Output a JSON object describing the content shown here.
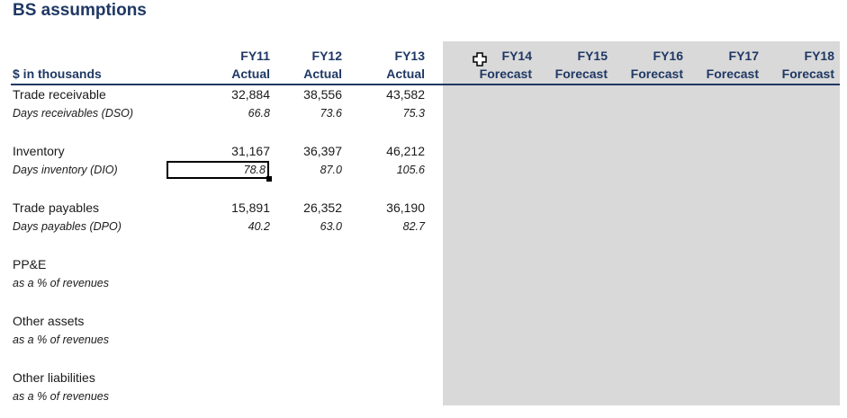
{
  "title": "BS assumptions",
  "units_label": "$ in thousands",
  "columns": [
    {
      "year": "FY11",
      "type": "Actual"
    },
    {
      "year": "FY12",
      "type": "Actual"
    },
    {
      "year": "FY13",
      "type": "Actual"
    },
    {
      "year": "FY14",
      "type": "Forecast"
    },
    {
      "year": "FY15",
      "type": "Forecast"
    },
    {
      "year": "FY16",
      "type": "Forecast"
    },
    {
      "year": "FY17",
      "type": "Forecast"
    },
    {
      "year": "FY18",
      "type": "Forecast"
    }
  ],
  "rows": [
    {
      "label": "Trade receivable",
      "values": [
        "32,884",
        "38,556",
        "43,582"
      ]
    },
    {
      "label": "Days receivables (DSO)",
      "values": [
        "66.8",
        "73.6",
        "75.3"
      ]
    },
    {
      "label": "Inventory",
      "values": [
        "31,167",
        "36,397",
        "46,212"
      ]
    },
    {
      "label": "Days inventory (DIO)",
      "values": [
        "78.8",
        "87.0",
        "105.6"
      ]
    },
    {
      "label": "Trade payables",
      "values": [
        "15,891",
        "26,352",
        "36,190"
      ]
    },
    {
      "label": "Days payables (DPO)",
      "values": [
        "40.2",
        "63.0",
        "82.7"
      ]
    },
    {
      "label": "PP&E",
      "values": []
    },
    {
      "label": "as a % of revenues",
      "values": []
    },
    {
      "label": "Other assets",
      "values": []
    },
    {
      "label": "as a % of revenues",
      "values": []
    },
    {
      "label": "Other liabilities",
      "values": []
    },
    {
      "label": "as a % of revenues",
      "values": []
    }
  ],
  "colors": {
    "header": "#1f3864",
    "forecast_fill": "#d9d9d9"
  }
}
